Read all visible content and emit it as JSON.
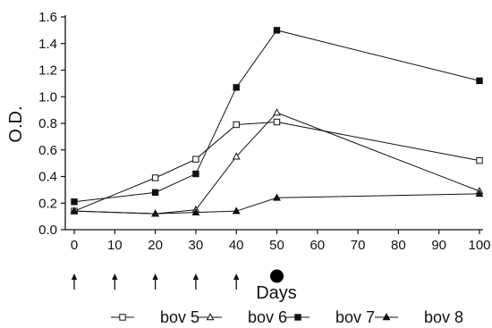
{
  "chart_data": {
    "type": "line",
    "title": "",
    "xlabel": "Days",
    "ylabel": "O.D.",
    "x": [
      0,
      10,
      20,
      30,
      40,
      50,
      100
    ],
    "x_ticks": [
      "0",
      "10",
      "20",
      "30",
      "40",
      "50",
      "60",
      "70",
      "80",
      "90",
      "100"
    ],
    "y_ticks": [
      "0.0",
      "0.2",
      "0.4",
      "0.6",
      "0.8",
      "1.0",
      "1.2",
      "1.4",
      "1.6"
    ],
    "xlim": [
      0,
      100
    ],
    "ylim": [
      0,
      1.6
    ],
    "grid": false,
    "legend_position": "bottom",
    "series": [
      {
        "name": "bov 5",
        "marker": "open-square",
        "points": [
          [
            0,
            0.14
          ],
          [
            20,
            0.39
          ],
          [
            30,
            0.53
          ],
          [
            40,
            0.79
          ],
          [
            50,
            0.81
          ],
          [
            100,
            0.52
          ]
        ]
      },
      {
        "name": "bov 6",
        "marker": "open-triangle",
        "points": [
          [
            0,
            0.14
          ],
          [
            20,
            0.12
          ],
          [
            30,
            0.15
          ],
          [
            40,
            0.55
          ],
          [
            50,
            0.88
          ],
          [
            100,
            0.29
          ]
        ]
      },
      {
        "name": "bov 7",
        "marker": "filled-square",
        "points": [
          [
            0,
            0.21
          ],
          [
            20,
            0.28
          ],
          [
            30,
            0.42
          ],
          [
            40,
            1.07
          ],
          [
            50,
            1.5
          ],
          [
            100,
            1.12
          ]
        ]
      },
      {
        "name": "bov 8",
        "marker": "filled-triangle",
        "points": [
          [
            0,
            0.14
          ],
          [
            20,
            0.12
          ],
          [
            30,
            0.13
          ],
          [
            40,
            0.14
          ],
          [
            50,
            0.24
          ],
          [
            100,
            0.27
          ]
        ]
      }
    ],
    "annotations": {
      "arrows_at": [
        0,
        10,
        20,
        30,
        40
      ],
      "dot_at": 50
    }
  }
}
